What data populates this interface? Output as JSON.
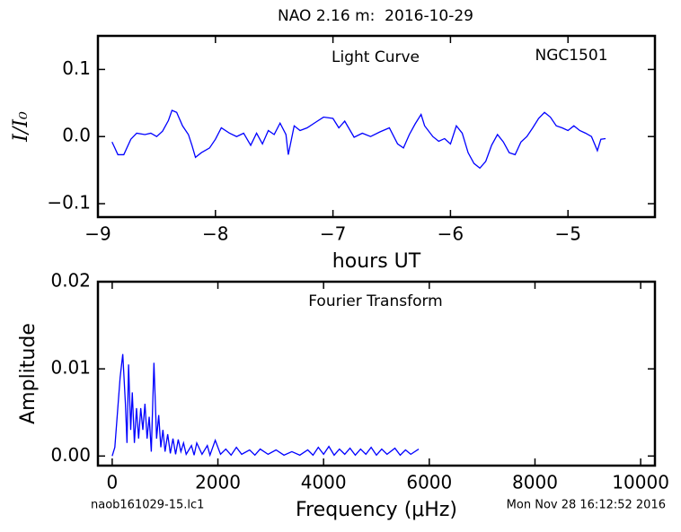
{
  "page": {
    "title": "NAO 2.16 m:  2016-10-29",
    "file_name": "naob161029-15.lc1",
    "timestamp": "Mon Nov 28 16:12:52 2016"
  },
  "chart_data": [
    {
      "type": "line",
      "xlabel": "hours UT",
      "ylabel": "I/I₀",
      "annotations": [
        "Light Curve",
        "NGC1501"
      ],
      "color": "#0000ff",
      "x": [
        -8.88,
        -8.83,
        -8.78,
        -8.72,
        -8.67,
        -8.6,
        -8.55,
        -8.5,
        -8.45,
        -8.4,
        -8.37,
        -8.33,
        -8.28,
        -8.23,
        -8.2,
        -8.17,
        -8.12,
        -8.05,
        -8.0,
        -7.95,
        -7.88,
        -7.82,
        -7.76,
        -7.7,
        -7.65,
        -7.6,
        -7.55,
        -7.5,
        -7.45,
        -7.4,
        -7.38,
        -7.33,
        -7.28,
        -7.22,
        -7.15,
        -7.08,
        -7.0,
        -6.95,
        -6.9,
        -6.82,
        -6.75,
        -6.68,
        -6.6,
        -6.52,
        -6.45,
        -6.4,
        -6.35,
        -6.3,
        -6.25,
        -6.22,
        -6.15,
        -6.1,
        -6.05,
        -6.0,
        -5.95,
        -5.9,
        -5.85,
        -5.8,
        -5.75,
        -5.7,
        -5.65,
        -5.6,
        -5.55,
        -5.5,
        -5.45,
        -5.4,
        -5.35,
        -5.3,
        -5.25,
        -5.2,
        -5.15,
        -5.1,
        -5.05,
        -5.0,
        -4.95,
        -4.9,
        -4.85,
        -4.8,
        -4.75,
        -4.72,
        -4.68
      ],
      "values": [
        -0.008,
        -0.027,
        -0.027,
        -0.004,
        0.005,
        0.003,
        0.005,
        0,
        0.008,
        0.024,
        0.039,
        0.036,
        0.016,
        0.003,
        -0.013,
        -0.031,
        -0.024,
        -0.017,
        -0.004,
        0.013,
        0.005,
        0,
        0.005,
        -0.013,
        0.005,
        -0.011,
        0.009,
        0.003,
        0.02,
        0.003,
        -0.027,
        0.016,
        0.009,
        0.013,
        0.021,
        0.029,
        0.027,
        0.013,
        0.023,
        -0.001,
        0.005,
        0,
        0.007,
        0.013,
        -0.011,
        -0.017,
        0.003,
        0.019,
        0.033,
        0.016,
        0,
        -0.007,
        -0.003,
        -0.011,
        0.016,
        0.005,
        -0.024,
        -0.04,
        -0.047,
        -0.037,
        -0.013,
        0.003,
        -0.008,
        -0.024,
        -0.027,
        -0.008,
        0,
        0.013,
        0.027,
        0.036,
        0.029,
        0.016,
        0.013,
        0.009,
        0.016,
        0.009,
        0.005,
        0,
        -0.021,
        -0.004,
        -0.003
      ],
      "xlim": [
        -9.0,
        -4.26
      ],
      "ylim": [
        -0.12,
        0.15
      ],
      "xticks": [
        {
          "value": -9,
          "label": "−9"
        },
        {
          "value": -8,
          "label": "−8"
        },
        {
          "value": -7,
          "label": "−7"
        },
        {
          "value": -6,
          "label": "−6"
        },
        {
          "value": -5,
          "label": "−5"
        }
      ],
      "yticks": [
        {
          "value": -0.1,
          "label": "−0.1"
        },
        {
          "value": 0,
          "label": "0.0"
        },
        0.1
      ]
    },
    {
      "type": "line",
      "xlabel": "Frequency (μHz)",
      "ylabel": "Amplitude",
      "annotations": [
        "Fourier Transform"
      ],
      "color": "#0000ff",
      "x": [
        0,
        50,
        100,
        150,
        200,
        250,
        280,
        310,
        350,
        380,
        420,
        460,
        500,
        540,
        580,
        620,
        660,
        700,
        740,
        790,
        840,
        880,
        920,
        960,
        1000,
        1050,
        1100,
        1150,
        1200,
        1250,
        1300,
        1350,
        1400,
        1500,
        1550,
        1600,
        1700,
        1800,
        1850,
        1950,
        2050,
        2150,
        2250,
        2350,
        2450,
        2600,
        2700,
        2800,
        2950,
        3100,
        3250,
        3400,
        3550,
        3700,
        3800,
        3900,
        4000,
        4100,
        4200,
        4300,
        4400,
        4500,
        4600,
        4700,
        4800,
        4900,
        5000,
        5100,
        5200,
        5350,
        5450,
        5550,
        5650,
        5800
      ],
      "values": [
        0,
        0.001,
        0.005,
        0.009,
        0.0117,
        0.006,
        0.0015,
        0.0105,
        0.003,
        0.0073,
        0.0015,
        0.0055,
        0.002,
        0.0055,
        0.003,
        0.006,
        0.002,
        0.0045,
        0.0005,
        0.0107,
        0.002,
        0.0047,
        0.001,
        0.003,
        0.0005,
        0.0025,
        0.0003,
        0.002,
        0.0002,
        0.0019,
        0.0005,
        0.0015,
        0.0002,
        0.0012,
        0.0001,
        0.0015,
        0.0002,
        0.0012,
        0.0001,
        0.0018,
        0.0002,
        0.0008,
        0.0001,
        0.001,
        0.0002,
        0.0007,
        0.0001,
        0.0008,
        0.0002,
        0.0007,
        0.0001,
        0.0005,
        0.0001,
        0.0007,
        0.0001,
        0.001,
        0.0002,
        0.0011,
        0.0001,
        0.0008,
        0.0002,
        0.0009,
        0.0001,
        0.0008,
        0.0002,
        0.001,
        0.0001,
        0.0008,
        0.0002,
        0.0009,
        0.0001,
        0.0007,
        0.0002,
        0.0008
      ],
      "xlim": [
        -270,
        10270
      ],
      "ylim": [
        -0.0011,
        0.02
      ],
      "xticks": [
        0,
        2000,
        4000,
        6000,
        8000,
        10000
      ],
      "yticks": [
        {
          "value": 0,
          "label": "0.00"
        },
        0.01,
        0.02
      ]
    }
  ]
}
